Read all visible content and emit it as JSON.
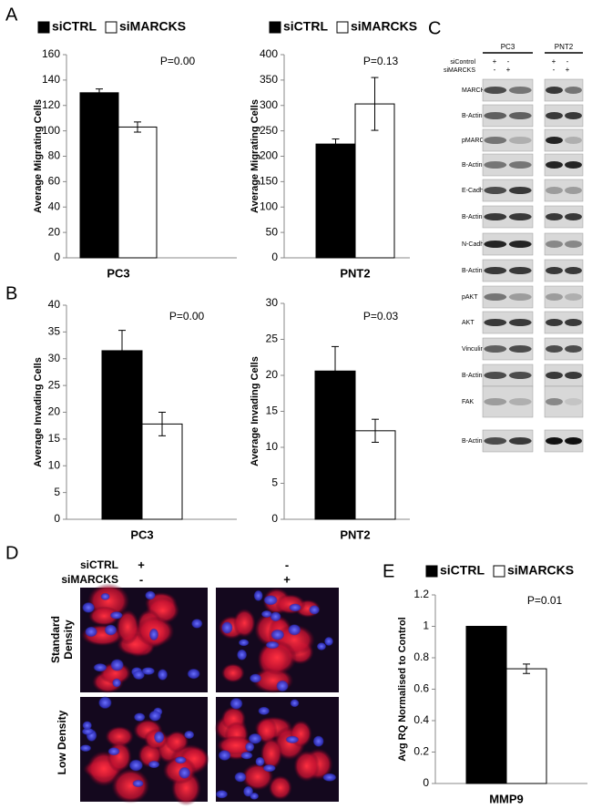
{
  "panel_labels": [
    "A",
    "B",
    "C",
    "D",
    "E"
  ],
  "chart_data": [
    {
      "type": "bar",
      "ylabel": "Average Migrating Cells",
      "categories": [
        "PC3"
      ],
      "annotation": "P=0.00",
      "ylim": [
        0,
        160
      ],
      "yticks": [
        0,
        20,
        40,
        60,
        80,
        100,
        120,
        140,
        160
      ],
      "legend": true,
      "series": [
        {
          "name": "siCTRL",
          "color": "#000000",
          "values": [
            130
          ],
          "errors": [
            3
          ]
        },
        {
          "name": "siMARCKS",
          "color": "#ffffff",
          "values": [
            103
          ],
          "errors": [
            4
          ]
        }
      ]
    },
    {
      "type": "bar",
      "ylabel": "Average Migrating Cells",
      "categories": [
        "PNT2"
      ],
      "annotation": "P=0.13",
      "ylim": [
        0,
        400
      ],
      "yticks": [
        0,
        50,
        100,
        150,
        200,
        250,
        300,
        350,
        400
      ],
      "legend": true,
      "series": [
        {
          "name": "siCTRL",
          "color": "#000000",
          "values": [
            224
          ],
          "errors": [
            10
          ]
        },
        {
          "name": "siMARCKS",
          "color": "#ffffff",
          "values": [
            303
          ],
          "errors": [
            52
          ]
        }
      ]
    },
    {
      "type": "bar",
      "ylabel": "Average Invading Cells",
      "categories": [
        "PC3"
      ],
      "annotation": "P=0.00",
      "ylim": [
        0,
        40
      ],
      "yticks": [
        0,
        5,
        10,
        15,
        20,
        25,
        30,
        35,
        40
      ],
      "legend": false,
      "series": [
        {
          "name": "siCTRL",
          "color": "#000000",
          "values": [
            31.5
          ],
          "errors": [
            3.8
          ]
        },
        {
          "name": "siMARCKS",
          "color": "#ffffff",
          "values": [
            17.8
          ],
          "errors": [
            2.2
          ]
        }
      ]
    },
    {
      "type": "bar",
      "ylabel": "Average Invading Cells",
      "categories": [
        "PNT2"
      ],
      "annotation": "P=0.03",
      "ylim": [
        0,
        30
      ],
      "yticks": [
        0,
        5,
        10,
        15,
        20,
        25,
        30
      ],
      "legend": false,
      "series": [
        {
          "name": "siCTRL",
          "color": "#000000",
          "values": [
            20.6
          ],
          "errors": [
            3.4
          ]
        },
        {
          "name": "siMARCKS",
          "color": "#ffffff",
          "values": [
            12.3
          ],
          "errors": [
            1.6
          ]
        }
      ]
    },
    {
      "type": "bar",
      "ylabel": "Avg RQ Normalised to Control",
      "categories": [
        "MMP9"
      ],
      "annotation": "P=0.01",
      "ylim": [
        0,
        1.2
      ],
      "yticks": [
        0,
        0.2,
        0.4,
        0.6,
        0.8,
        1,
        1.2
      ],
      "legend": true,
      "series": [
        {
          "name": "siCTRL",
          "color": "#000000",
          "values": [
            1.0
          ],
          "errors": [
            0
          ]
        },
        {
          "name": "siMARCKS",
          "color": "#ffffff",
          "values": [
            0.73
          ],
          "errors": [
            0.03
          ]
        }
      ]
    }
  ],
  "western_blot": {
    "columns": [
      "PC3",
      "PNT2"
    ],
    "conditions": [
      {
        "label": "siControl",
        "marks": [
          "+",
          "-",
          "+",
          "-"
        ]
      },
      {
        "label": "siMARCKS",
        "marks": [
          "-",
          "+",
          "-",
          "+"
        ]
      }
    ],
    "bands": [
      "MARCKS",
      "B-Actin",
      "pMARCKS",
      "B-Actin",
      "E-Cadherin",
      "B-Actin",
      "N-Cadherin",
      "B-Actin",
      "pAKT",
      "AKT",
      "Vinculin",
      "B-Actin",
      "FAK",
      "B-Actin"
    ]
  },
  "micrographs": {
    "conditions": [
      {
        "label": "siCTRL",
        "marks": [
          "+",
          "-"
        ]
      },
      {
        "label": "siMARCKS",
        "marks": [
          "-",
          "+"
        ]
      }
    ],
    "rows": [
      "Standard Density",
      "Low Density"
    ]
  }
}
